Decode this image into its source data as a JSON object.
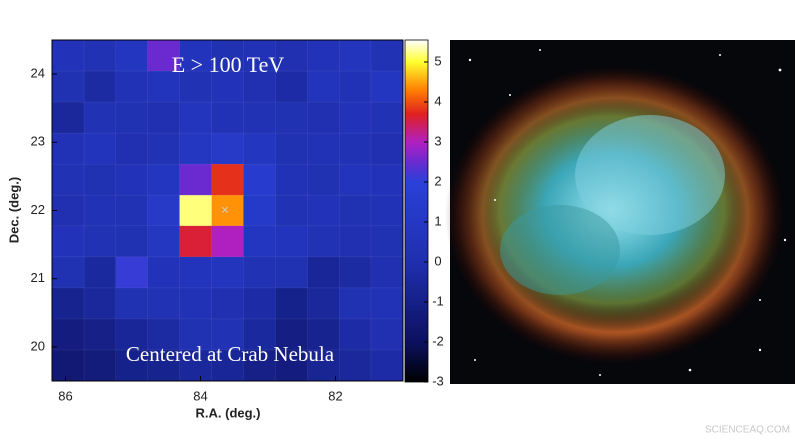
{
  "chart_data": {
    "type": "heatmap",
    "title": "E > 100 TeV",
    "annotation": "Centered at Crab Nebula",
    "x_label": "R.A. (deg.)",
    "y_label": "Dec. (deg.)",
    "watermark": "SCIENCEAQ.COM",
    "x": [
      85.96,
      85.49,
      85.02,
      84.55,
      84.07,
      83.6,
      83.13,
      82.65,
      82.18,
      81.71,
      81.24
    ],
    "y": [
      24.27,
      23.82,
      23.36,
      22.91,
      22.45,
      22.0,
      21.55,
      21.09,
      20.64,
      20.18,
      19.73
    ],
    "z": [
      [
        0.5,
        0.3,
        0.8,
        2.5,
        0.6,
        0.2,
        0.4,
        0.1,
        0.5,
        0.7,
        0.3
      ],
      [
        0.2,
        -0.3,
        0.4,
        0.6,
        0.3,
        0.5,
        0.1,
        -0.2,
        0.6,
        0.4,
        0.8
      ],
      [
        -0.5,
        0.3,
        0.2,
        0.1,
        0.7,
        0.4,
        0.3,
        0.2,
        0.1,
        0.5,
        0.3
      ],
      [
        0.4,
        0.6,
        0.1,
        0.3,
        0.9,
        1.2,
        0.8,
        0.2,
        0.4,
        0.3,
        0.1
      ],
      [
        0.3,
        0.2,
        0.5,
        0.8,
        2.5,
        3.8,
        1.5,
        0.4,
        0.2,
        0.6,
        0.5
      ],
      [
        0.1,
        0.4,
        0.3,
        1.2,
        5.2,
        4.4,
        1.3,
        0.3,
        0.5,
        0.2,
        0.4
      ],
      [
        0.5,
        0.3,
        0.2,
        0.9,
        3.6,
        3.0,
        0.8,
        0.6,
        0.3,
        0.1,
        0.2
      ],
      [
        0.2,
        -0.4,
        2.1,
        0.5,
        0.6,
        0.7,
        0.3,
        0.2,
        -0.6,
        -0.3,
        0.1
      ],
      [
        -0.8,
        -0.5,
        0.2,
        0.3,
        0.4,
        0.1,
        -0.2,
        -0.9,
        -0.5,
        0.2,
        0.4
      ],
      [
        -1.2,
        -1.0,
        -0.6,
        -0.3,
        0.2,
        0.3,
        -0.4,
        -1.1,
        -0.8,
        -0.2,
        0.1
      ],
      [
        -1.5,
        -1.3,
        -0.9,
        -0.8,
        -0.5,
        -0.6,
        -1.0,
        -1.2,
        -0.7,
        -0.5,
        -0.2
      ]
    ],
    "xlim": [
      86.2,
      81.0
    ],
    "xticks": [
      86,
      84,
      82
    ],
    "ylim": [
      19.5,
      24.5
    ],
    "yticks": [
      20,
      21,
      22,
      23,
      24
    ],
    "clim": [
      -3,
      5.55
    ],
    "cticks": [
      -3,
      -2,
      -1,
      0,
      1,
      2,
      3,
      4,
      5
    ],
    "colorscale": [
      [
        -3,
        "#000000"
      ],
      [
        -2,
        "#0c1160"
      ],
      [
        0,
        "#1f2fae"
      ],
      [
        2,
        "#2a40d8"
      ],
      [
        2.5,
        "#6a2ad0"
      ],
      [
        3,
        "#b020c0"
      ],
      [
        3.7,
        "#e02020"
      ],
      [
        4.3,
        "#ff8000"
      ],
      [
        5,
        "#ffff30"
      ],
      [
        5.55,
        "#ffffff"
      ]
    ]
  }
}
